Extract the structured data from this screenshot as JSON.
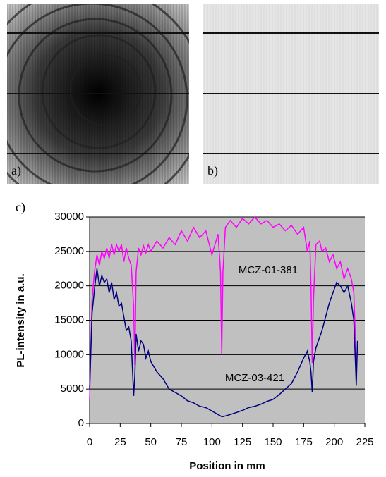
{
  "panel_labels": [
    "a)",
    "b)",
    "c)"
  ],
  "chart_data": {
    "type": "line",
    "xlabel": "Position in mm",
    "ylabel": "PL-intensity in a.u.",
    "x": [
      0,
      2,
      4,
      6,
      8,
      10,
      12,
      14,
      16,
      18,
      20,
      22,
      24,
      26,
      28,
      30,
      32,
      34,
      36,
      37,
      38,
      40,
      42,
      44,
      46,
      48,
      50,
      55,
      60,
      65,
      70,
      75,
      80,
      85,
      90,
      95,
      100,
      105,
      107,
      108,
      109,
      111,
      115,
      120,
      125,
      130,
      135,
      140,
      145,
      150,
      155,
      160,
      165,
      170,
      175,
      178,
      180,
      181,
      182,
      183,
      185,
      188,
      190,
      193,
      196,
      199,
      202,
      205,
      208,
      211,
      214,
      216,
      218,
      219
    ],
    "series": [
      {
        "name": "MCZ-01-381",
        "color": "#ff00ff",
        "values": [
          3500,
          18000,
          22000,
          24500,
          23000,
          25000,
          24000,
          25500,
          24000,
          26000,
          24500,
          26000,
          25000,
          26000,
          23500,
          25500,
          24000,
          23000,
          17000,
          8500,
          22000,
          25500,
          24500,
          25800,
          24800,
          26000,
          25000,
          26500,
          25500,
          27000,
          26000,
          28000,
          26500,
          28500,
          27000,
          28000,
          24500,
          27500,
          22000,
          10000,
          22000,
          28500,
          29500,
          28500,
          29800,
          29000,
          30000,
          29000,
          29500,
          28500,
          29000,
          28000,
          28800,
          27500,
          28500,
          25000,
          26500,
          20000,
          8800,
          18000,
          26000,
          26500,
          25000,
          25500,
          23500,
          24500,
          22500,
          23500,
          21000,
          22500,
          21000,
          19000,
          8500,
          11000
        ]
      },
      {
        "name": "MCZ-03-421",
        "color": "#000080",
        "values": [
          5000,
          16000,
          19500,
          22500,
          20000,
          21500,
          20500,
          21000,
          19000,
          20500,
          18000,
          19000,
          17000,
          17500,
          15500,
          13500,
          14000,
          12000,
          4000,
          7000,
          13000,
          10500,
          12000,
          11500,
          9500,
          10500,
          9000,
          7500,
          6500,
          5000,
          4500,
          4000,
          3300,
          3000,
          2500,
          2300,
          1800,
          1300,
          1100,
          1000,
          1000,
          1100,
          1300,
          1600,
          1900,
          2300,
          2500,
          2800,
          3200,
          3500,
          4200,
          5000,
          5800,
          7500,
          9500,
          10500,
          9000,
          7500,
          4500,
          9000,
          11000,
          12500,
          13500,
          15500,
          17500,
          19000,
          20500,
          20000,
          19000,
          20000,
          17500,
          15000,
          5500,
          12000
        ]
      }
    ],
    "xlim": [
      0,
      225
    ],
    "xticks": [
      0,
      25,
      50,
      75,
      100,
      125,
      150,
      175,
      200,
      225
    ],
    "ylim": [
      0,
      30000
    ],
    "yticks": [
      0,
      5000,
      10000,
      15000,
      20000,
      25000,
      30000
    ],
    "grid": true,
    "background": "#c0c0c0"
  }
}
